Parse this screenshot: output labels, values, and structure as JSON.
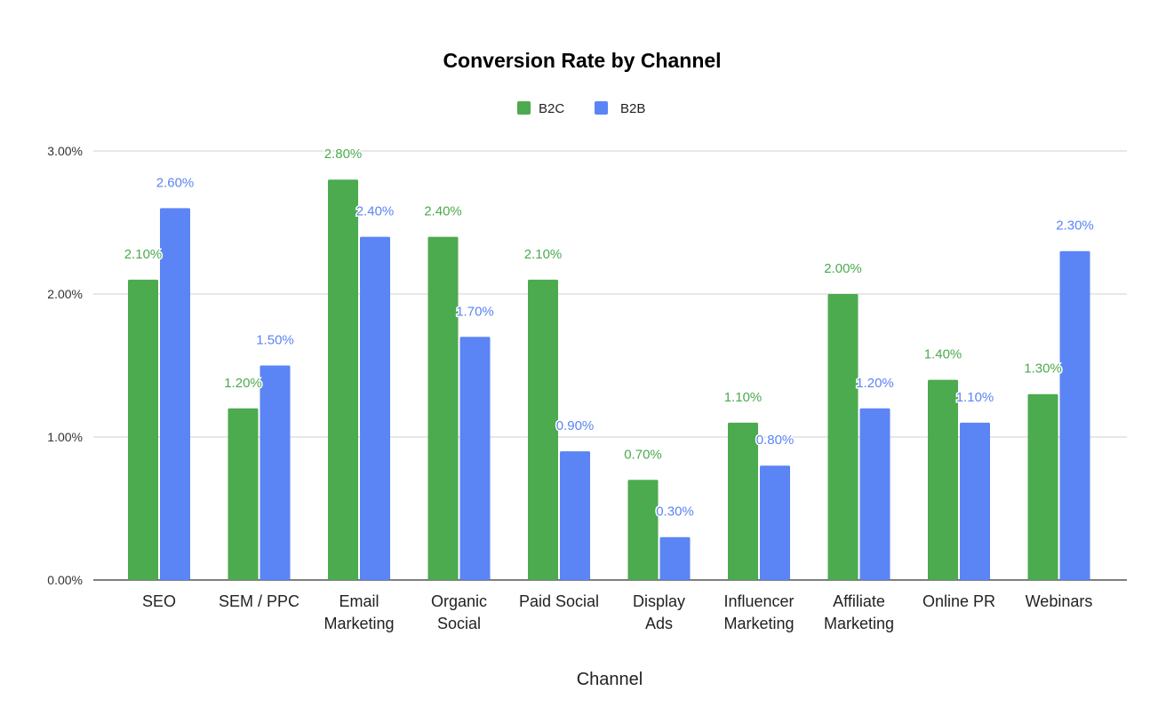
{
  "chart_data": {
    "type": "bar",
    "title": "Conversion Rate by Channel",
    "xlabel": "Channel",
    "ylabel": "",
    "ylim": [
      0,
      3
    ],
    "yticks": [
      "0.00%",
      "1.00%",
      "2.00%",
      "3.00%"
    ],
    "ytick_values": [
      0,
      1,
      2,
      3
    ],
    "grid": true,
    "legend": "top-center",
    "categories": [
      [
        "SEO"
      ],
      [
        "SEM / PPC"
      ],
      [
        "Email",
        "Marketing"
      ],
      [
        "Organic",
        "Social"
      ],
      [
        "Paid Social"
      ],
      [
        "Display",
        "Ads"
      ],
      [
        "Influencer",
        "Marketing"
      ],
      [
        "Affiliate",
        "Marketing"
      ],
      [
        "Online PR"
      ],
      [
        "Webinars"
      ]
    ],
    "series": [
      {
        "name": "B2C",
        "color": "#4CAA4F",
        "values": [
          2.1,
          1.2,
          2.8,
          2.4,
          2.1,
          0.7,
          1.1,
          2.0,
          1.4,
          1.3
        ],
        "labels": [
          "2.10%",
          "1.20%",
          "2.80%",
          "2.40%",
          "2.10%",
          "0.70%",
          "1.10%",
          "2.00%",
          "1.40%",
          "1.30%"
        ]
      },
      {
        "name": "B2B",
        "color": "#5B84F5",
        "values": [
          2.6,
          1.5,
          2.4,
          1.7,
          0.9,
          0.3,
          0.8,
          1.2,
          1.1,
          2.3
        ],
        "labels": [
          "2.60%",
          "1.50%",
          "2.40%",
          "1.70%",
          "0.90%",
          "0.30%",
          "0.80%",
          "1.20%",
          "1.10%",
          "2.30%"
        ]
      }
    ]
  }
}
